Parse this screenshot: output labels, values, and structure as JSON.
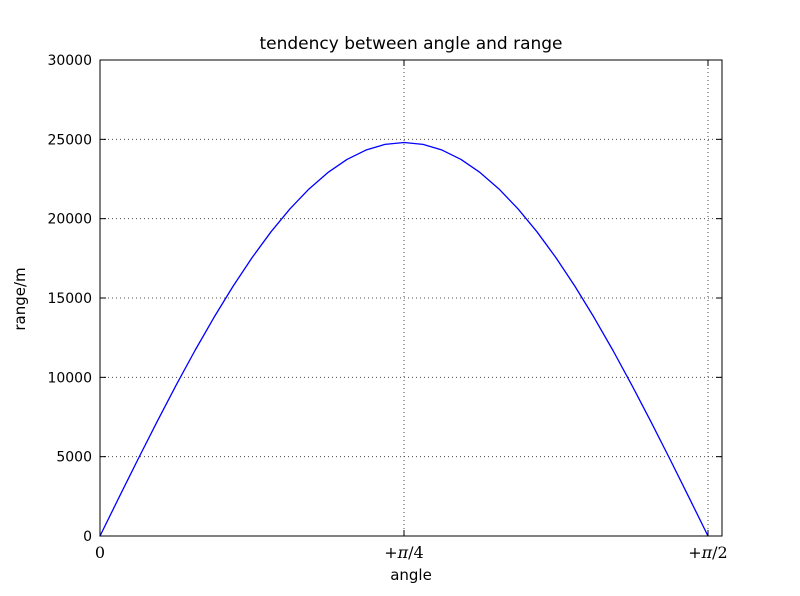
{
  "chart_data": {
    "type": "line",
    "title": "tendency between angle and range",
    "xlabel": "angle",
    "ylabel": "range/m",
    "xlim": [
      0,
      1.607
    ],
    "ylim": [
      0,
      30000
    ],
    "grid": true,
    "grid_style": "dotted",
    "legend_position": "none",
    "background_color": "#ffffff",
    "spine_color": "#000000",
    "grid_color": "#4d4d4d",
    "xticks": [
      {
        "value": 0,
        "label": "0"
      },
      {
        "value": 0.7854,
        "label": "+π/4"
      },
      {
        "value": 1.5708,
        "label": "+π/2"
      }
    ],
    "yticks": [
      {
        "value": 0,
        "label": "0"
      },
      {
        "value": 5000,
        "label": "5000"
      },
      {
        "value": 10000,
        "label": "10000"
      },
      {
        "value": 15000,
        "label": "15000"
      },
      {
        "value": 20000,
        "label": "20000"
      },
      {
        "value": 25000,
        "label": "25000"
      },
      {
        "value": 30000,
        "label": "30000"
      }
    ],
    "series": [
      {
        "name": "range vs angle",
        "color": "#0000ff",
        "function": "range = 24800 * sin(2 * angle)",
        "peak": {
          "x": 0.7854,
          "y": 24800
        },
        "x": [
          0.0,
          0.0491,
          0.0982,
          0.1473,
          0.1963,
          0.2454,
          0.2945,
          0.3436,
          0.3927,
          0.4418,
          0.4909,
          0.54,
          0.589,
          0.6381,
          0.6872,
          0.7363,
          0.7854,
          0.8345,
          0.8836,
          0.9327,
          0.9817,
          1.0308,
          1.0799,
          1.129,
          1.1781,
          1.2272,
          1.2763,
          1.3254,
          1.3744,
          1.4235,
          1.4726,
          1.5217,
          1.5708
        ],
        "y": [
          0,
          2431,
          4838,
          7199,
          9491,
          11691,
          13778,
          15733,
          17536,
          19171,
          20620,
          21872,
          22912,
          23732,
          24324,
          24680,
          24800,
          24680,
          24324,
          23732,
          22912,
          21872,
          20620,
          19171,
          17536,
          15733,
          13778,
          11691,
          9491,
          7199,
          4838,
          2431,
          0
        ]
      }
    ]
  }
}
